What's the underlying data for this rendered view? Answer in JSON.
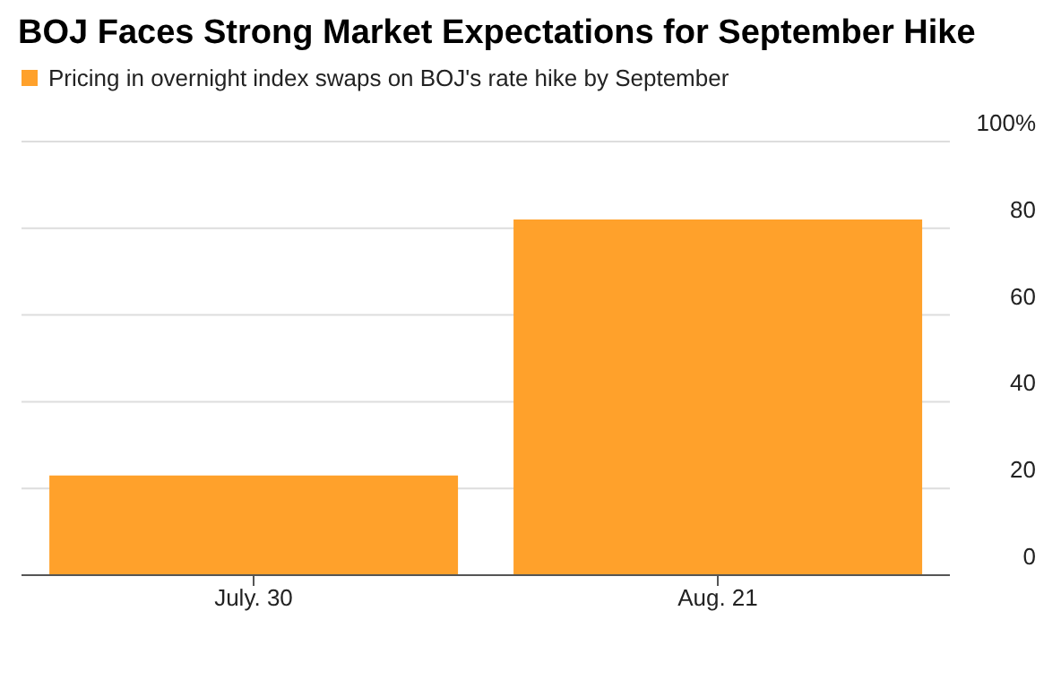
{
  "chart_data": {
    "type": "bar",
    "title": "BOJ Faces Strong Market Expectations for September Hike",
    "categories": [
      "July. 30",
      "Aug. 21"
    ],
    "series": [
      {
        "name": "Pricing in overnight index swaps on BOJ's rate hike by September",
        "color": "#ffa12b",
        "values": [
          23,
          82
        ]
      }
    ],
    "ylim": [
      0,
      100
    ],
    "yticks": [
      0,
      20,
      40,
      60,
      80,
      {
        "value": 100,
        "label": "100%"
      }
    ],
    "grid": "y",
    "legend": "top left"
  }
}
